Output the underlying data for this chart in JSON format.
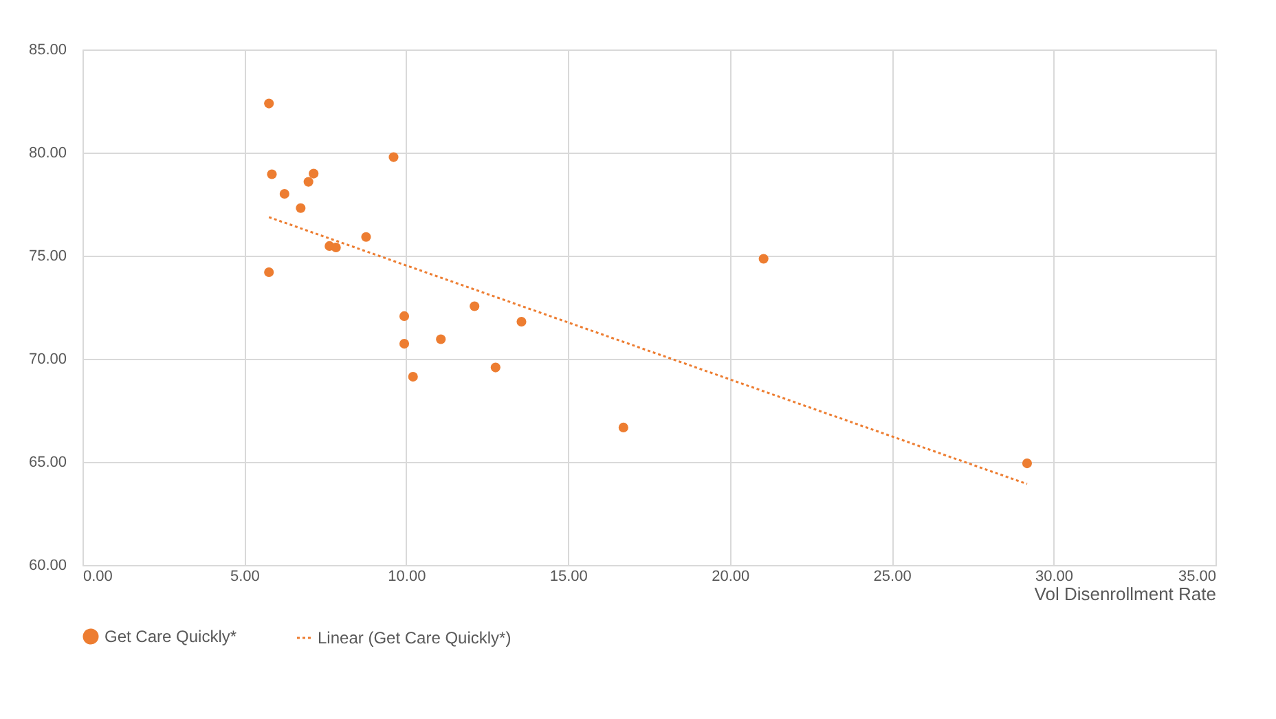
{
  "chart_data": {
    "type": "scatter",
    "xlabel": "Vol Disenrollment Rate",
    "series": [
      {
        "name": "Get Care Quickly*",
        "color": "#ed7d31",
        "marker": "circle",
        "x": [
          5.76,
          5.85,
          7.14,
          6.98,
          6.24,
          6.74,
          9.61,
          8.76,
          7.63,
          7.83,
          5.76,
          9.94,
          9.94,
          10.21,
          11.07,
          12.11,
          12.76,
          13.56,
          16.71,
          21.04,
          29.18
        ],
        "values": [
          82.38,
          78.95,
          78.98,
          78.58,
          78.0,
          77.31,
          79.78,
          75.91,
          75.47,
          75.4,
          74.2,
          72.07,
          70.73,
          69.13,
          70.95,
          72.55,
          69.58,
          71.8,
          66.67,
          74.85,
          64.93
        ]
      },
      {
        "name": "Linear (Get Care Quickly*)",
        "type": "line",
        "color": "#ed7d31",
        "line_style": "dotted",
        "x": [
          5.76,
          29.18
        ],
        "values": [
          76.87,
          63.93
        ]
      }
    ],
    "xlim": [
      0,
      35
    ],
    "ylim": [
      60,
      85
    ],
    "xticks": [
      {
        "value": 0,
        "label": "0.00"
      },
      {
        "value": 5,
        "label": "5.00"
      },
      {
        "value": 10,
        "label": "10.00"
      },
      {
        "value": 15,
        "label": "15.00"
      },
      {
        "value": 20,
        "label": "20.00"
      },
      {
        "value": 25,
        "label": "25.00"
      },
      {
        "value": 30,
        "label": "30.00"
      },
      {
        "value": 35,
        "label": "35.00"
      }
    ],
    "yticks": [
      {
        "value": 60,
        "label": "60.00"
      },
      {
        "value": 65,
        "label": "65.00"
      },
      {
        "value": 70,
        "label": "70.00"
      },
      {
        "value": 75,
        "label": "75.00"
      },
      {
        "value": 80,
        "label": "80.00"
      },
      {
        "value": 85,
        "label": "85.00"
      }
    ],
    "grid": true,
    "legend": "bottom"
  }
}
